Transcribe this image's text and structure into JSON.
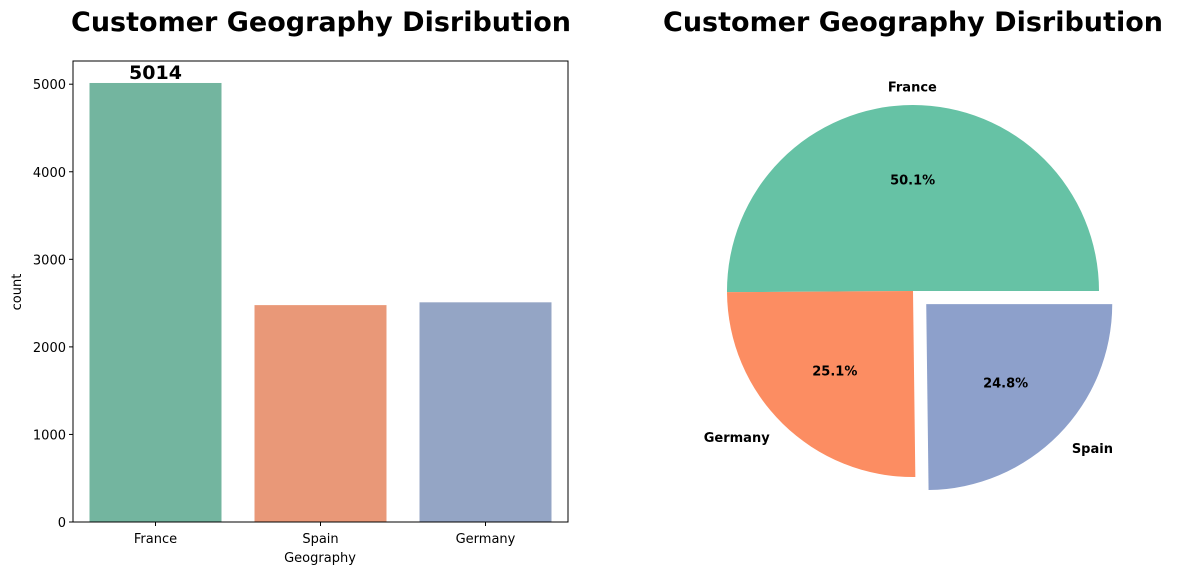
{
  "chart_data": [
    {
      "type": "bar",
      "title": "Customer Geography Disribution",
      "xlabel": "Geography",
      "ylabel": "count",
      "categories": [
        "France",
        "Spain",
        "Germany"
      ],
      "values": [
        5014,
        2477,
        2509
      ],
      "colors": [
        "#73b59f",
        "#e99878",
        "#94a5c5"
      ],
      "ylim": [
        0,
        5265
      ],
      "yticks": [
        0,
        1000,
        2000,
        3000,
        4000,
        5000
      ],
      "ytick_labels": [
        "0",
        "1000",
        "2000",
        "3000",
        "4000",
        "5000"
      ],
      "data_labels": [
        "5014",
        "",
        ""
      ],
      "grid": false
    },
    {
      "type": "pie",
      "title": "Customer Geography Disribution",
      "labels": [
        "France",
        "Germany",
        "Spain"
      ],
      "values": [
        50.1,
        25.1,
        24.8
      ],
      "percent_labels": [
        "50.1%",
        "25.1%",
        "24.8%"
      ],
      "colors": [
        "#66c2a5",
        "#fc8d62",
        "#8da0cb"
      ],
      "explode": [
        0,
        0,
        0.1
      ]
    }
  ]
}
